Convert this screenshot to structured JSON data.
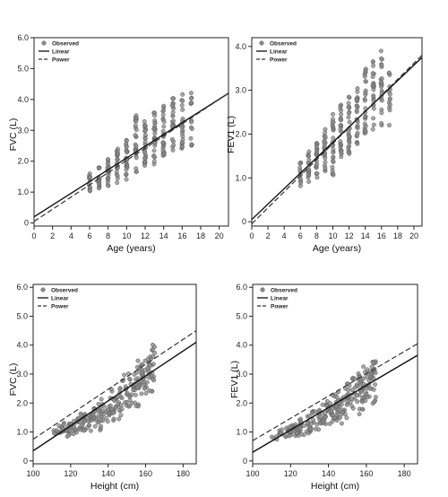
{
  "colors": {
    "observed": "#8a8a8a",
    "observed_edge": "#555555",
    "linear": "#111111",
    "power": "#333333",
    "axis": "#222222"
  },
  "legend": {
    "observed": "Observed",
    "linear": "Linear",
    "power": "Power"
  },
  "chart_data": [
    {
      "type": "scatter",
      "title": "",
      "xlabel": "Age (years)",
      "ylabel": "FVC (L)",
      "xlim": [
        0,
        21
      ],
      "ylim": [
        -0.1,
        6.0
      ],
      "xticks": [
        0,
        2,
        4,
        6,
        8,
        10,
        12,
        14,
        16,
        18,
        20
      ],
      "yticks": [
        0,
        1.0,
        2.0,
        3.0,
        4.0,
        5.0,
        6.0
      ],
      "ytick_labels": [
        "0",
        "1.0",
        "2.0",
        "3.0",
        "4.0",
        "5.0",
        "6.0"
      ],
      "legend_position": "top-left",
      "series": [
        {
          "name": "Observed",
          "kind": "points",
          "groups": [
            {
              "x": 6,
              "y": [
                0.9,
                1.6
              ],
              "n": 12
            },
            {
              "x": 7,
              "y": [
                1.05,
                1.9
              ],
              "n": 16
            },
            {
              "x": 8,
              "y": [
                1.2,
                2.1
              ],
              "n": 20
            },
            {
              "x": 9,
              "y": [
                1.3,
                2.4
              ],
              "n": 22
            },
            {
              "x": 10,
              "y": [
                1.4,
                2.7
              ],
              "n": 26
            },
            {
              "x": 11,
              "y": [
                1.6,
                3.5
              ],
              "n": 26
            },
            {
              "x": 12,
              "y": [
                1.8,
                3.3
              ],
              "n": 26
            },
            {
              "x": 13,
              "y": [
                1.9,
                3.6
              ],
              "n": 26
            },
            {
              "x": 14,
              "y": [
                2.1,
                3.9
              ],
              "n": 26
            },
            {
              "x": 15,
              "y": [
                2.3,
                4.1
              ],
              "n": 24
            },
            {
              "x": 16,
              "y": [
                2.4,
                4.3
              ],
              "n": 22
            },
            {
              "x": 17,
              "y": [
                2.5,
                4.25
              ],
              "n": 14
            }
          ]
        },
        {
          "name": "Linear",
          "kind": "line",
          "x": [
            0,
            21
          ],
          "y": [
            0.2,
            4.2
          ]
        },
        {
          "name": "Power",
          "kind": "curve",
          "x": [
            0,
            21
          ],
          "y": [
            0.05,
            4.2
          ]
        }
      ]
    },
    {
      "type": "scatter",
      "title": "",
      "xlabel": "Age (years)",
      "ylabel": "FEV1 (L)",
      "xlim": [
        0,
        21
      ],
      "ylim": [
        -0.1,
        4.2
      ],
      "xticks": [
        0,
        2,
        4,
        6,
        8,
        10,
        12,
        14,
        16,
        18,
        20
      ],
      "yticks": [
        0,
        1.0,
        2.0,
        3.0,
        4.0
      ],
      "ytick_labels": [
        "0",
        "1.0",
        "2.0",
        "3.0",
        "4.0"
      ],
      "legend_position": "top-left",
      "series": [
        {
          "name": "Observed",
          "kind": "points",
          "groups": [
            {
              "x": 6,
              "y": [
                0.8,
                1.45
              ],
              "n": 12
            },
            {
              "x": 7,
              "y": [
                0.9,
                1.6
              ],
              "n": 16
            },
            {
              "x": 8,
              "y": [
                1.0,
                1.8
              ],
              "n": 20
            },
            {
              "x": 9,
              "y": [
                1.1,
                2.2
              ],
              "n": 22
            },
            {
              "x": 10,
              "y": [
                1.05,
                2.5
              ],
              "n": 26
            },
            {
              "x": 11,
              "y": [
                1.4,
                2.75
              ],
              "n": 26
            },
            {
              "x": 12,
              "y": [
                1.55,
                3.0
              ],
              "n": 26
            },
            {
              "x": 13,
              "y": [
                1.75,
                3.1
              ],
              "n": 26
            },
            {
              "x": 14,
              "y": [
                1.95,
                3.55
              ],
              "n": 26
            },
            {
              "x": 15,
              "y": [
                2.05,
                3.7
              ],
              "n": 24
            },
            {
              "x": 16,
              "y": [
                2.1,
                4.0
              ],
              "n": 22
            },
            {
              "x": 17,
              "y": [
                2.2,
                3.6
              ],
              "n": 14
            }
          ]
        },
        {
          "name": "Linear",
          "kind": "line",
          "x": [
            0,
            21
          ],
          "y": [
            0.05,
            3.75
          ]
        },
        {
          "name": "Power",
          "kind": "curve",
          "x": [
            0,
            21
          ],
          "y": [
            -0.05,
            3.8
          ]
        }
      ]
    },
    {
      "type": "scatter",
      "title": "",
      "xlabel": "Height (cm)",
      "ylabel": "FVC (L)",
      "xlim": [
        100,
        187
      ],
      "ylim": [
        -0.1,
        6.1
      ],
      "xticks": [
        100,
        120,
        140,
        160,
        180
      ],
      "yticks": [
        0,
        1.0,
        2.0,
        3.0,
        4.0,
        5.0,
        6.0
      ],
      "ytick_labels": [
        "0",
        "1.0",
        "2.0",
        "3.0",
        "4.0",
        "5.0",
        "6.0"
      ],
      "legend_position": "top-left",
      "series": [
        {
          "name": "Observed",
          "kind": "points",
          "trend": {
            "x0": 110,
            "y0": 1.0,
            "x1": 165,
            "y1": 3.2,
            "k": 1.6
          },
          "spread_base": 0.12,
          "spread_gain": 0.55,
          "xrange": [
            110,
            165
          ],
          "n": 260
        },
        {
          "name": "Linear",
          "kind": "line",
          "x": [
            100,
            187
          ],
          "y": [
            0.35,
            4.1
          ]
        },
        {
          "name": "Power",
          "kind": "curve",
          "x": [
            100,
            187
          ],
          "y": [
            0.75,
            4.5
          ]
        }
      ]
    },
    {
      "type": "scatter",
      "title": "",
      "xlabel": "Height (cm)",
      "ylabel": "FEV1 (L)",
      "xlim": [
        100,
        187
      ],
      "ylim": [
        -0.1,
        6.1
      ],
      "xticks": [
        100,
        120,
        140,
        160,
        180
      ],
      "yticks": [
        0,
        1.0,
        2.0,
        3.0,
        4.0,
        5.0,
        6.0
      ],
      "ytick_labels": [
        "0",
        "1.0",
        "2.0",
        "3.0",
        "4.0",
        "5.0",
        "6.0"
      ],
      "legend_position": "top-left",
      "series": [
        {
          "name": "Observed",
          "kind": "points",
          "trend": {
            "x0": 110,
            "y0": 0.85,
            "x1": 163,
            "y1": 2.8,
            "k": 1.6
          },
          "spread_base": 0.1,
          "spread_gain": 0.5,
          "xrange": [
            110,
            165
          ],
          "n": 260
        },
        {
          "name": "Linear",
          "kind": "line",
          "x": [
            100,
            187
          ],
          "y": [
            0.3,
            3.65
          ]
        },
        {
          "name": "Power",
          "kind": "curve",
          "x": [
            100,
            187
          ],
          "y": [
            0.7,
            4.05
          ]
        }
      ]
    }
  ]
}
